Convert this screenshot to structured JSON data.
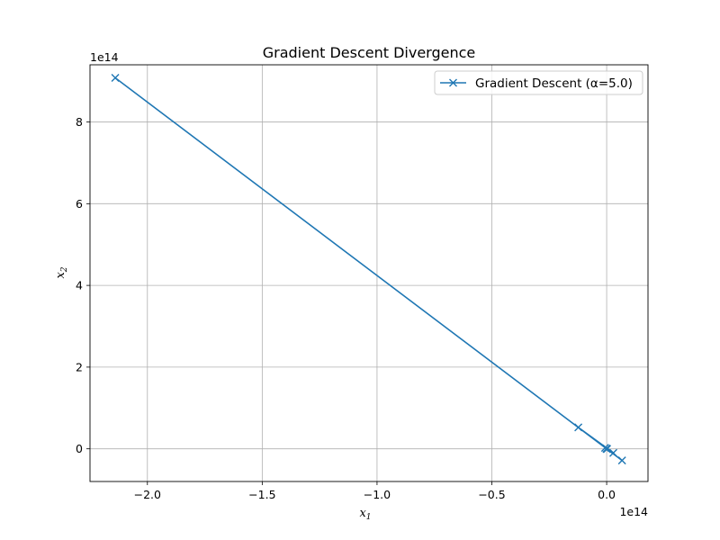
{
  "chart_data": {
    "type": "line",
    "title": "Gradient Descent Divergence",
    "xlabel": "x",
    "xlabel_sub": "1",
    "ylabel": "x",
    "ylabel_sub": "2",
    "x_offset_label": "1e14",
    "y_offset_label": "1e14",
    "xlim": [
      -2.25,
      0.18
    ],
    "ylim": [
      -0.8,
      9.4
    ],
    "x_ticks": [
      -2.0,
      -1.5,
      -1.0,
      -0.5,
      0.0
    ],
    "x_tick_labels": [
      "−2.0",
      "−1.5",
      "−1.0",
      "−0.5",
      "0.0"
    ],
    "y_ticks": [
      0,
      2,
      4,
      6,
      8
    ],
    "y_tick_labels": [
      "0",
      "2",
      "4",
      "6",
      "8"
    ],
    "grid": true,
    "legend_position": "top-right",
    "series": [
      {
        "name": "Gradient Descent (α=5.0)",
        "color": "#1f77b4",
        "marker": "x",
        "x": [
          0.0,
          0.0,
          0.0,
          0.0,
          0.0,
          0.0001,
          -0.0003,
          0.0016,
          -0.0069,
          0.0291,
          -0.1234,
          0.067,
          -2.14
        ],
        "y": [
          0.0,
          0.0,
          0.0,
          0.0,
          0.0,
          -0.0004,
          0.0013,
          -0.0055,
          0.0235,
          -0.0995,
          0.5238,
          -0.285,
          9.08
        ]
      }
    ]
  }
}
